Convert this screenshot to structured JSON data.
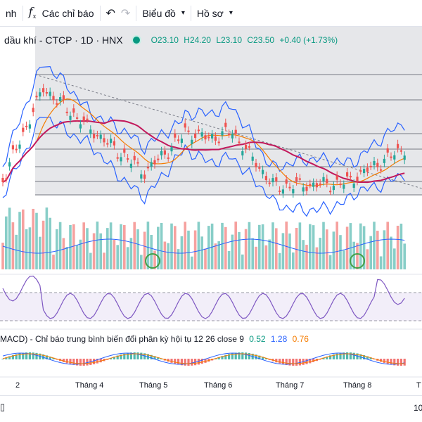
{
  "toolbar": {
    "cut_label": "nh",
    "indicators_label": "Các chỉ báo",
    "chart_type_label": "Biểu đồ",
    "profile_label": "Hồ sơ"
  },
  "legend": {
    "symbol": "dầu khí - CTCP · 1D · HNX",
    "open": "O23.10",
    "high": "H24.20",
    "low": "L23.10",
    "close": "C23.50",
    "change": "+0.40 (+1.73%)"
  },
  "macd": {
    "title": "MACD) - Chỉ báo trung bình biến đổi phân kỳ hội tụ 12 26 close 9",
    "v1": "0.52",
    "v2": "1.28",
    "v3": "0.76"
  },
  "xaxis": [
    "2",
    "Tháng 4",
    "Tháng 5",
    "Tháng 6",
    "Tháng 7",
    "Tháng 8",
    "T"
  ],
  "bottom": {
    "right_label": "10"
  },
  "colors": {
    "up": "#26a69a",
    "down": "#ef5350",
    "bb": "#2962ff",
    "ma_fast": "#f57c00",
    "ma_slow": "#c2185b",
    "rsi": "#7e57c2"
  }
}
